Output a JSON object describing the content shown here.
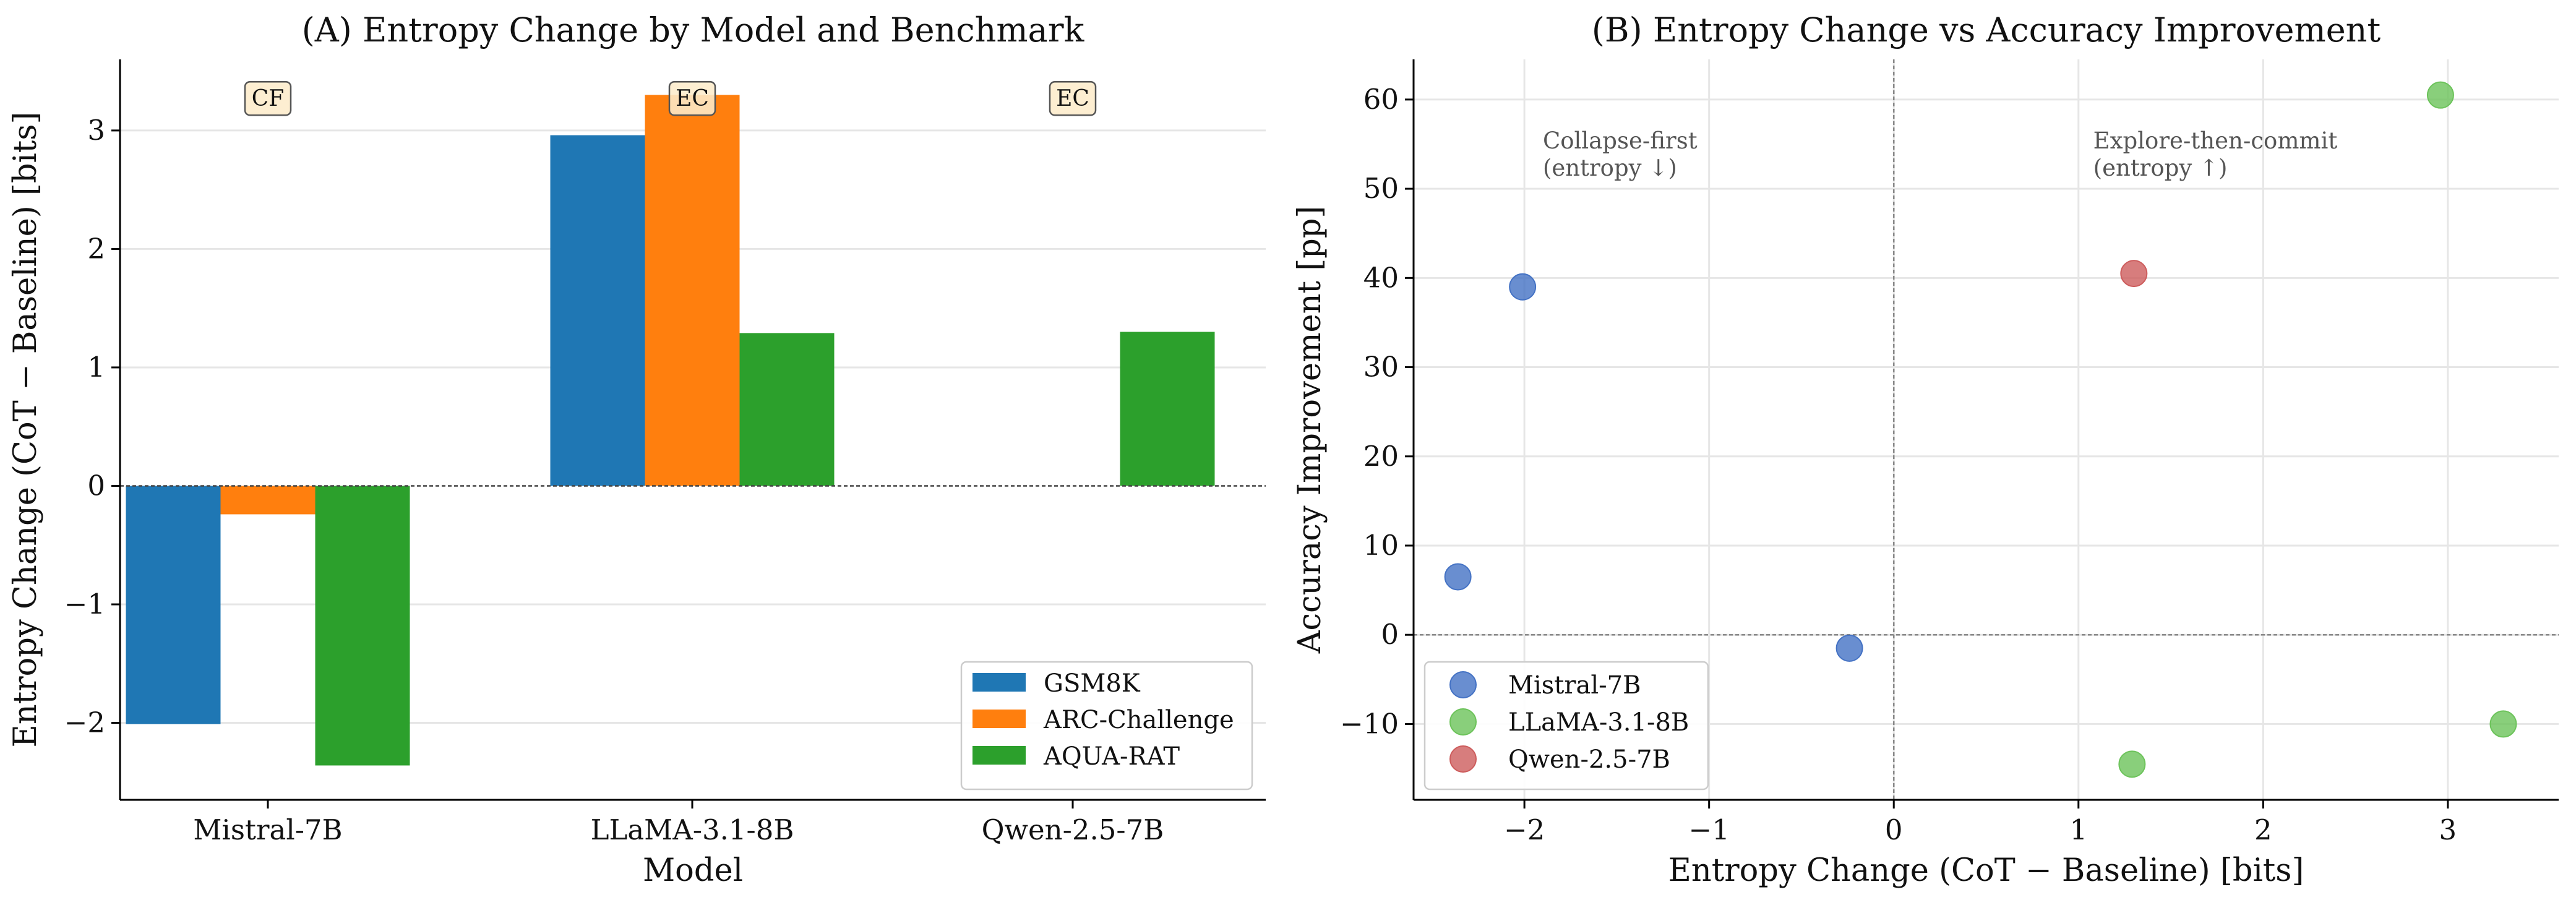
{
  "chart_data": [
    {
      "type": "bar",
      "title": "(A) Entropy Change by Model and Benchmark",
      "xlabel": "Model",
      "ylabel": "Entropy Change (CoT − Baseline) [bits]",
      "categories": [
        "Mistral-7B",
        "LLaMA-3.1-8B",
        "Qwen-2.5-7B"
      ],
      "ylim": [
        -2.65,
        3.6
      ],
      "yticks": [
        -2,
        -1,
        0,
        1,
        2,
        3
      ],
      "ytick_labels": [
        "−2",
        "−1",
        "0",
        "1",
        "2",
        "3"
      ],
      "grid": "horizontal",
      "legend_position": "lower-right",
      "series": [
        {
          "name": "GSM8K",
          "color": "#1f77b4",
          "values": [
            -2.01,
            2.96,
            null
          ]
        },
        {
          "name": "ARC-Challenge",
          "color": "#ff7f0e",
          "values": [
            -0.24,
            3.3,
            null
          ]
        },
        {
          "name": "AQUA-RAT",
          "color": "#2ca02c",
          "values": [
            -2.36,
            1.29,
            1.3
          ]
        }
      ],
      "annotations": [
        {
          "category": "Mistral-7B",
          "text": "CF",
          "y": 3.27
        },
        {
          "category": "LLaMA-3.1-8B",
          "text": "EC",
          "y": 3.27
        },
        {
          "category": "Qwen-2.5-7B",
          "text": "EC",
          "y": 3.27
        }
      ]
    },
    {
      "type": "scatter",
      "title": "(B) Entropy Change vs Accuracy Improvement",
      "xlabel": "Entropy Change (CoT − Baseline) [bits]",
      "ylabel": "Accuracy Improvement [pp]",
      "xlim": [
        -2.6,
        3.6
      ],
      "ylim": [
        -18.5,
        64.5
      ],
      "xticks": [
        -2,
        -1,
        0,
        1,
        2,
        3
      ],
      "xtick_labels": [
        "−2",
        "−1",
        "0",
        "1",
        "2",
        "3"
      ],
      "yticks": [
        -10,
        0,
        10,
        20,
        30,
        40,
        50,
        60
      ],
      "ytick_labels": [
        "−10",
        "0",
        "10",
        "20",
        "30",
        "40",
        "50",
        "60"
      ],
      "grid": "both",
      "legend_position": "lower-left",
      "series": [
        {
          "name": "Mistral-7B",
          "color": "#4472c4",
          "points": [
            [
              -2.01,
              39.0
            ],
            [
              -2.36,
              6.5
            ],
            [
              -0.24,
              -1.5
            ]
          ]
        },
        {
          "name": "LLaMA-3.1-8B",
          "color": "#6cc35a",
          "points": [
            [
              2.96,
              60.5
            ],
            [
              3.3,
              -10.0
            ],
            [
              1.29,
              -14.5
            ]
          ]
        },
        {
          "name": "Qwen-2.5-7B",
          "color": "#cd5c5c",
          "points": [
            [
              1.3,
              40.5
            ]
          ]
        }
      ],
      "annotations": [
        {
          "text_lines": [
            "Collapse-first",
            "(entropy ↓)"
          ],
          "x": -1.9,
          "y": 54.5
        },
        {
          "text_lines": [
            "Explore-then-commit",
            "(entropy ↑)"
          ],
          "x": 1.08,
          "y": 54.5
        }
      ]
    }
  ]
}
